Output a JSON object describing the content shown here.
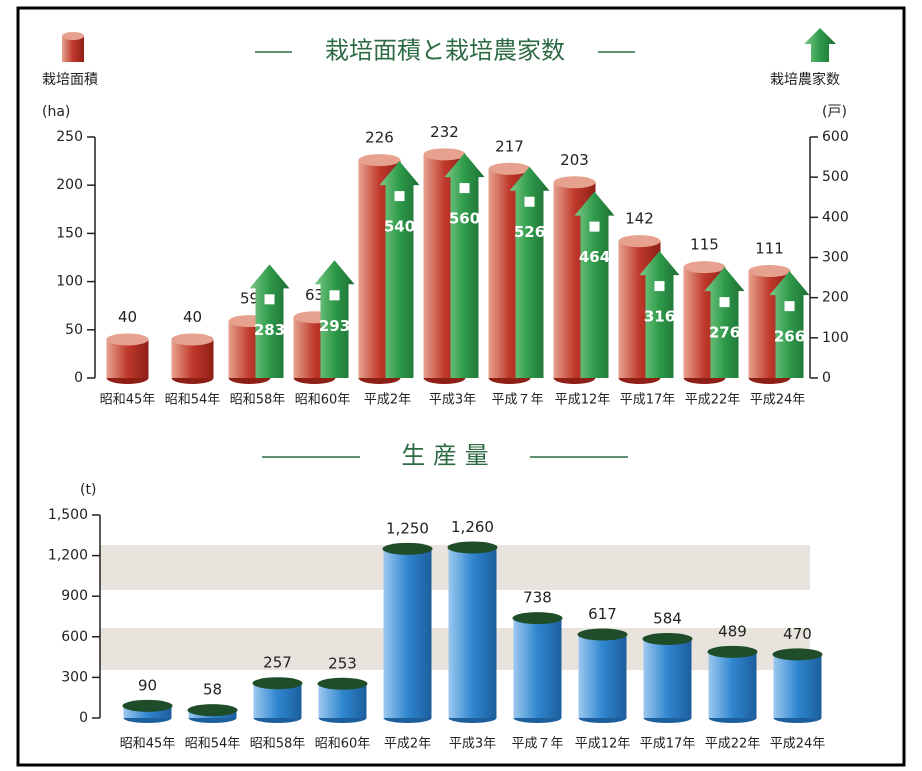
{
  "chart_data": [
    {
      "type": "bar",
      "title": "栽培面積と栽培農家数",
      "y_label": "(ha)",
      "y2_label": "(戸)",
      "categories": [
        "昭和45年",
        "昭和54年",
        "昭和58年",
        "昭和60年",
        "平成2年",
        "平成3年",
        "平成７年",
        "平成12年",
        "平成17年",
        "平成22年",
        "平成24年"
      ],
      "series": [
        {
          "name": "栽培面積",
          "color": "#b8322a",
          "values": [
            40,
            40,
            59,
            63,
            226,
            232,
            217,
            203,
            142,
            115,
            111
          ]
        },
        {
          "name": "栽培農家数",
          "color": "#2e9a4a",
          "axis": "y2",
          "values": [
            null,
            null,
            283,
            293,
            540,
            560,
            526,
            464,
            316,
            276,
            266
          ]
        }
      ],
      "ylim": [
        0,
        250
      ],
      "yticks": [
        0,
        50,
        100,
        150,
        200,
        250
      ],
      "y2lim": [
        0,
        600
      ],
      "y2ticks": [
        0,
        100,
        200,
        300,
        400,
        500,
        600
      ]
    },
    {
      "type": "pictograph",
      "title": "生 産 量",
      "y_label": "(t)",
      "categories": [
        "昭和45年",
        "昭和54年",
        "昭和58年",
        "昭和60年",
        "平成2年",
        "平成3年",
        "平成７年",
        "平成12年",
        "平成17年",
        "平成22年",
        "平成24年"
      ],
      "values": [
        90,
        58,
        257,
        253,
        1250,
        1260,
        738,
        617,
        584,
        489,
        470
      ],
      "value_labels": [
        "90",
        "58",
        "257",
        "253",
        "1,250",
        "1,260",
        "738",
        "617",
        "584",
        "489",
        "470"
      ],
      "color": "#2f86cf",
      "ylim": [
        0,
        1500
      ],
      "yticks": [
        0,
        300,
        600,
        900,
        {
          "value": 1200,
          "label": "1,200"
        },
        {
          "value": 1500,
          "label": "1,500"
        }
      ]
    }
  ]
}
